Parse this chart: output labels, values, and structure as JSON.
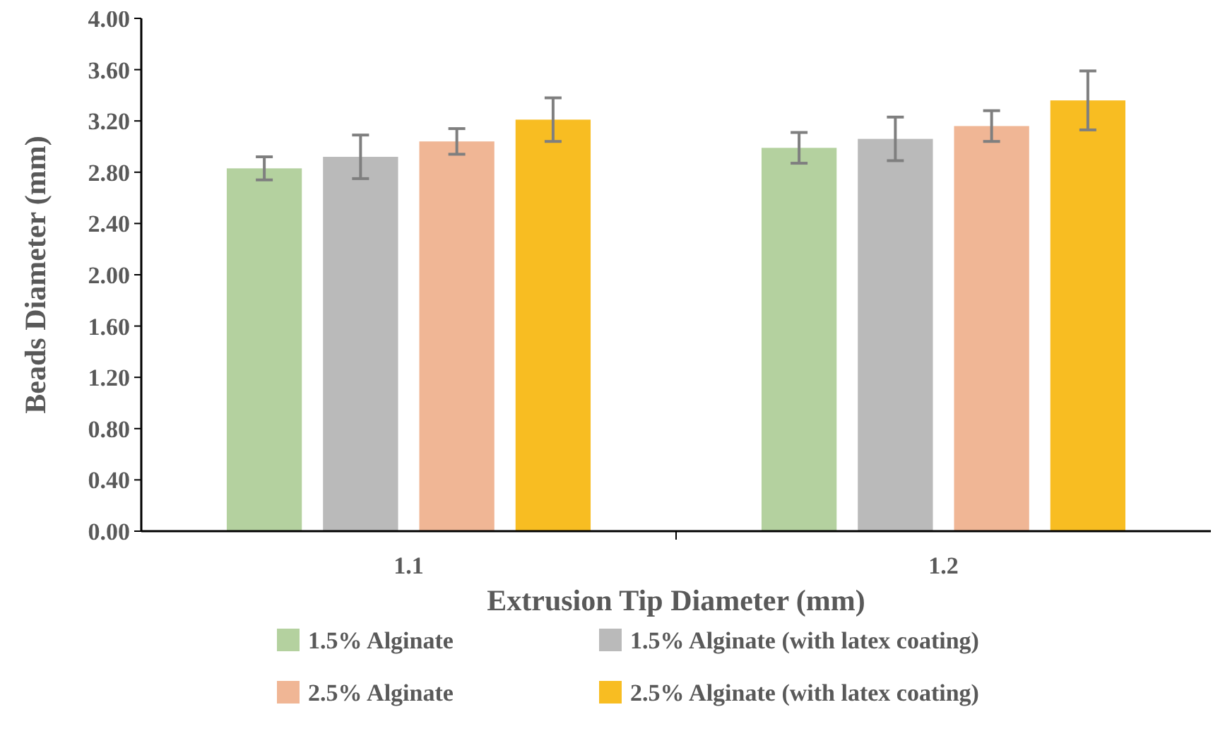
{
  "chart_data": {
    "type": "bar",
    "xlabel": "Extrusion Tip Diameter (mm)",
    "ylabel": "Beads Diameter (mm)",
    "categories": [
      "1.1",
      "1.2"
    ],
    "series": [
      {
        "name": "1.5% Alginate",
        "color": "#b4d19f",
        "values": [
          2.83,
          2.99
        ],
        "errors": [
          0.09,
          0.12
        ]
      },
      {
        "name": "1.5% Alginate (with latex coating)",
        "color": "#bababa",
        "values": [
          2.92,
          3.06
        ],
        "errors": [
          0.17,
          0.17
        ]
      },
      {
        "name": "2.5% Alginate",
        "color": "#f0b695",
        "values": [
          3.04,
          3.16
        ],
        "errors": [
          0.1,
          0.12
        ]
      },
      {
        "name": "2.5% Alginate (with latex coating)",
        "color": "#f8bd22",
        "values": [
          3.21,
          3.36
        ],
        "errors": [
          0.17,
          0.23
        ]
      }
    ],
    "ylim": [
      0,
      4
    ],
    "yticks": [
      {
        "value": 0,
        "label": "0.00"
      },
      {
        "value": 0.4,
        "label": "0.40"
      },
      {
        "value": 0.8,
        "label": "0.80"
      },
      {
        "value": 1.2,
        "label": "1.20"
      },
      {
        "value": 1.6,
        "label": "1.60"
      },
      {
        "value": 2,
        "label": "2.00"
      },
      {
        "value": 2.4,
        "label": "2.40"
      },
      {
        "value": 2.8,
        "label": "2.80"
      },
      {
        "value": 3.2,
        "label": "3.20"
      },
      {
        "value": 3.6,
        "label": "3.60"
      },
      {
        "value": 4,
        "label": "4.00"
      }
    ],
    "grid": false,
    "legend": "bottom"
  }
}
